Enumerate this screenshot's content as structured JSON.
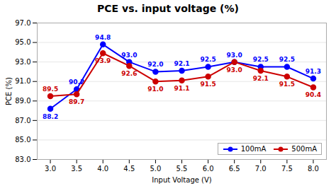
{
  "chart_data": {
    "type": "line",
    "title": "PCE vs. input voltage (%)",
    "xlabel": "Input Voltage (V)",
    "ylabel": "PCE (%)",
    "x": [
      3.0,
      3.5,
      4.0,
      4.5,
      5.0,
      5.5,
      6.0,
      6.5,
      7.0,
      7.5,
      8.0
    ],
    "series": [
      {
        "name": "100mA",
        "color": "#0000ff",
        "values": [
          88.2,
          90.2,
          94.8,
          93.0,
          92.0,
          92.1,
          92.5,
          93.0,
          92.5,
          92.5,
          91.3
        ],
        "value_labels": [
          "88.2",
          "90.2",
          "94.8",
          "93.0",
          "92.0",
          "92.1",
          "92.5",
          "93.0",
          "92.5",
          "92.5",
          "91.3"
        ]
      },
      {
        "name": "500mA",
        "color": "#cc0000",
        "values": [
          89.5,
          89.7,
          93.9,
          92.6,
          91.0,
          91.1,
          91.5,
          93.0,
          92.1,
          91.5,
          90.4
        ],
        "value_labels": [
          "89.5",
          "89.7",
          "93.9",
          "92.6",
          "91.0",
          "91.1",
          "91.5",
          "93.0",
          "92.1",
          "91.5",
          "90.4"
        ]
      }
    ],
    "xlim": [
      2.75,
      8.25
    ],
    "xticks": [
      {
        "value": 3.0,
        "label": "3.0"
      },
      {
        "value": 3.5,
        "label": "3.5"
      },
      {
        "value": 4.0,
        "label": "4.0"
      },
      {
        "value": 4.5,
        "label": "4.5"
      },
      {
        "value": 5.0,
        "label": "5.0"
      },
      {
        "value": 5.5,
        "label": "5.5"
      },
      {
        "value": 6.0,
        "label": "6.0"
      },
      {
        "value": 6.5,
        "label": "6.5"
      },
      {
        "value": 7.0,
        "label": "7.0"
      },
      {
        "value": 7.5,
        "label": "7.5"
      },
      {
        "value": 8.0,
        "label": "8.0"
      }
    ],
    "ylim": [
      83.0,
      97.0
    ],
    "yticks": [
      {
        "value": 83.0,
        "label": "83.0"
      },
      {
        "value": 85.0,
        "label": "85.0"
      },
      {
        "value": 87.0,
        "label": "87.0"
      },
      {
        "value": 89.0,
        "label": "89.0"
      },
      {
        "value": 91.0,
        "label": "91.0"
      },
      {
        "value": 93.0,
        "label": "93.0"
      },
      {
        "value": 95.0,
        "label": "95.0"
      },
      {
        "value": 97.0,
        "label": "97.0"
      }
    ],
    "grid": true,
    "legend": "lower right",
    "data_labels": true,
    "marker": "circle"
  }
}
